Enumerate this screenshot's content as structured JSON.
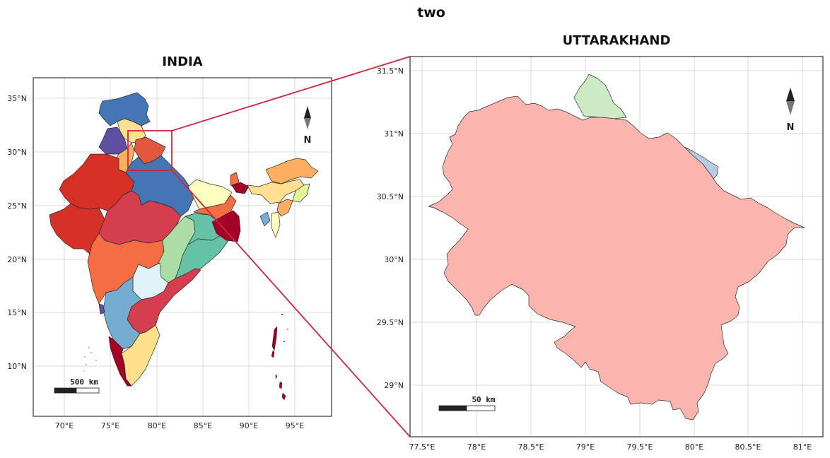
{
  "figure": {
    "title": "two"
  },
  "india": {
    "title": "INDIA",
    "xticks": [
      "70°E",
      "75°E",
      "80°E",
      "85°E",
      "90°E",
      "95°E"
    ],
    "yticks": [
      "35°N",
      "30°N",
      "25°N",
      "20°N",
      "15°N",
      "10°N"
    ],
    "scale_label": "500 km",
    "north_label": "N",
    "highlight_box_color": "#d0253c"
  },
  "uttarakhand": {
    "title": "UTTARAKHAND",
    "xticks": [
      "77.5°E",
      "78°E",
      "78.5°E",
      "79°E",
      "79.5°E",
      "80°E",
      "80.5°E",
      "81°E"
    ],
    "yticks": [
      "31.5°N",
      "31°N",
      "30.5°N",
      "30°N",
      "29.5°N",
      "29°N"
    ],
    "scale_label": "50 km",
    "north_label": "N",
    "fill_color": "#fbb4ae",
    "neighbor_colors": [
      "#ccebc5",
      "#b3cde3"
    ]
  },
  "connector_color": "#d0253c"
}
